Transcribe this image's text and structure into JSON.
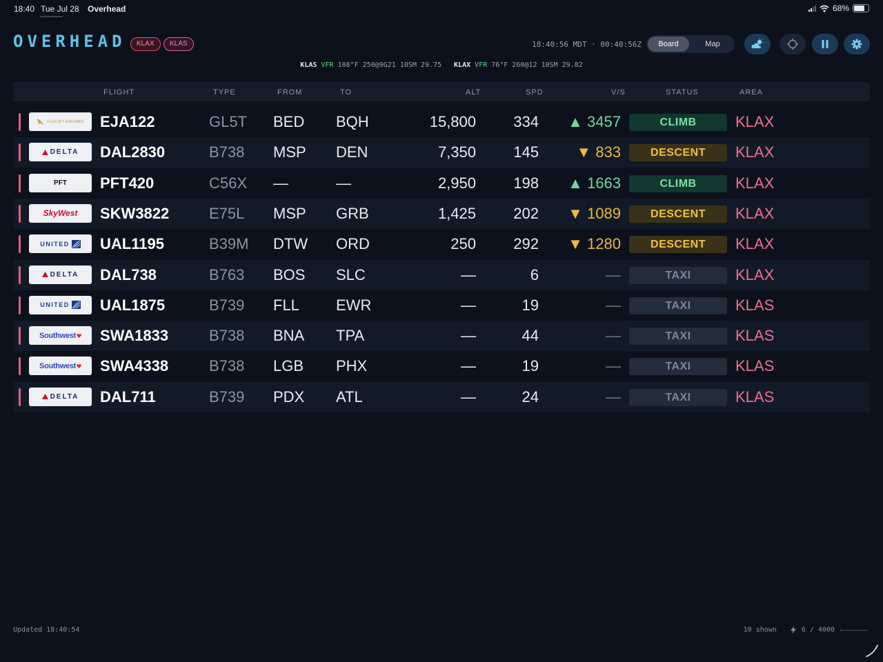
{
  "status_bar": {
    "time": "18:40",
    "date": "Tue Jul 28",
    "app": "Overhead",
    "battery": "68%",
    "battery_level": 0.68
  },
  "header": {
    "logo": "OVERHEAD",
    "airports": [
      "KLAX",
      "KLAS"
    ],
    "clock": "18:40:56 MDT · 00:40:56Z",
    "view_toggle": {
      "board": "Board",
      "map": "Map",
      "selected": "Board"
    }
  },
  "metar": [
    {
      "station": "KLAS",
      "category": "VFR",
      "report": "108°F 250@9G21 10SM 29.75"
    },
    {
      "station": "KLAX",
      "category": "VFR",
      "report": "76°F 260@12 10SM 29.82"
    }
  ],
  "table": {
    "columns": [
      "FLIGHT",
      "TYPE",
      "FROM",
      "TO",
      "ALT",
      "SPD",
      "V/S",
      "STATUS",
      "AREA"
    ],
    "rows": [
      {
        "logo": "FLEXJET AIRLINES",
        "airline": "flexjet",
        "flight": "EJA122",
        "type": "GL5T",
        "from": "BED",
        "to": "BQH",
        "alt": "15,800",
        "spd": "334",
        "vs": "▲ 3457",
        "vs_dir": "up",
        "status": "CLIMB",
        "area": "KLAX"
      },
      {
        "logo": "DELTA",
        "airline": "delta",
        "flight": "DAL2830",
        "type": "B738",
        "from": "MSP",
        "to": "DEN",
        "alt": "7,350",
        "spd": "145",
        "vs": "▼ 833",
        "vs_dir": "down",
        "status": "DESCENT",
        "area": "KLAX"
      },
      {
        "logo": "PFT",
        "airline": "pft",
        "flight": "PFT420",
        "type": "C56X",
        "from": "—",
        "to": "—",
        "alt": "2,950",
        "spd": "198",
        "vs": "▲ 1663",
        "vs_dir": "up",
        "status": "CLIMB",
        "area": "KLAX"
      },
      {
        "logo": "SkyWest",
        "airline": "skywest",
        "flight": "SKW3822",
        "type": "E75L",
        "from": "MSP",
        "to": "GRB",
        "alt": "1,425",
        "spd": "202",
        "vs": "▼ 1089",
        "vs_dir": "down",
        "status": "DESCENT",
        "area": "KLAX"
      },
      {
        "logo": "UNITED",
        "airline": "united",
        "flight": "UAL1195",
        "type": "B39M",
        "from": "DTW",
        "to": "ORD",
        "alt": "250",
        "spd": "292",
        "vs": "▼ 1280",
        "vs_dir": "down",
        "status": "DESCENT",
        "area": "KLAX"
      },
      {
        "logo": "DELTA",
        "airline": "delta",
        "flight": "DAL738",
        "type": "B763",
        "from": "BOS",
        "to": "SLC",
        "alt": "—",
        "spd": "6",
        "vs": "—",
        "vs_dir": "none",
        "status": "TAXI",
        "area": "KLAX"
      },
      {
        "logo": "UNITED",
        "airline": "united",
        "flight": "UAL1875",
        "type": "B739",
        "from": "FLL",
        "to": "EWR",
        "alt": "—",
        "spd": "19",
        "vs": "—",
        "vs_dir": "none",
        "status": "TAXI",
        "area": "KLAS"
      },
      {
        "logo": "Southwest",
        "airline": "southwest",
        "flight": "SWA1833",
        "type": "B738",
        "from": "BNA",
        "to": "TPA",
        "alt": "—",
        "spd": "44",
        "vs": "—",
        "vs_dir": "none",
        "status": "TAXI",
        "area": "KLAS"
      },
      {
        "logo": "Southwest",
        "airline": "southwest",
        "flight": "SWA4338",
        "type": "B738",
        "from": "LGB",
        "to": "PHX",
        "alt": "—",
        "spd": "19",
        "vs": "—",
        "vs_dir": "none",
        "status": "TAXI",
        "area": "KLAS"
      },
      {
        "logo": "DELTA",
        "airline": "delta",
        "flight": "DAL711",
        "type": "B739",
        "from": "PDX",
        "to": "ATL",
        "alt": "—",
        "spd": "24",
        "vs": "—",
        "vs_dir": "none",
        "status": "TAXI",
        "area": "KLAS"
      }
    ]
  },
  "footer": {
    "updated": "Updated 18:40:54",
    "shown": "10 shown",
    "quota": "6 / 4000",
    "quota_fraction": 0.0015
  },
  "colors": {
    "accent": "#5ec4e8",
    "climb": "#7ce0a8",
    "descent": "#f2c040",
    "area": "#f07090",
    "background": "#0c111c"
  }
}
